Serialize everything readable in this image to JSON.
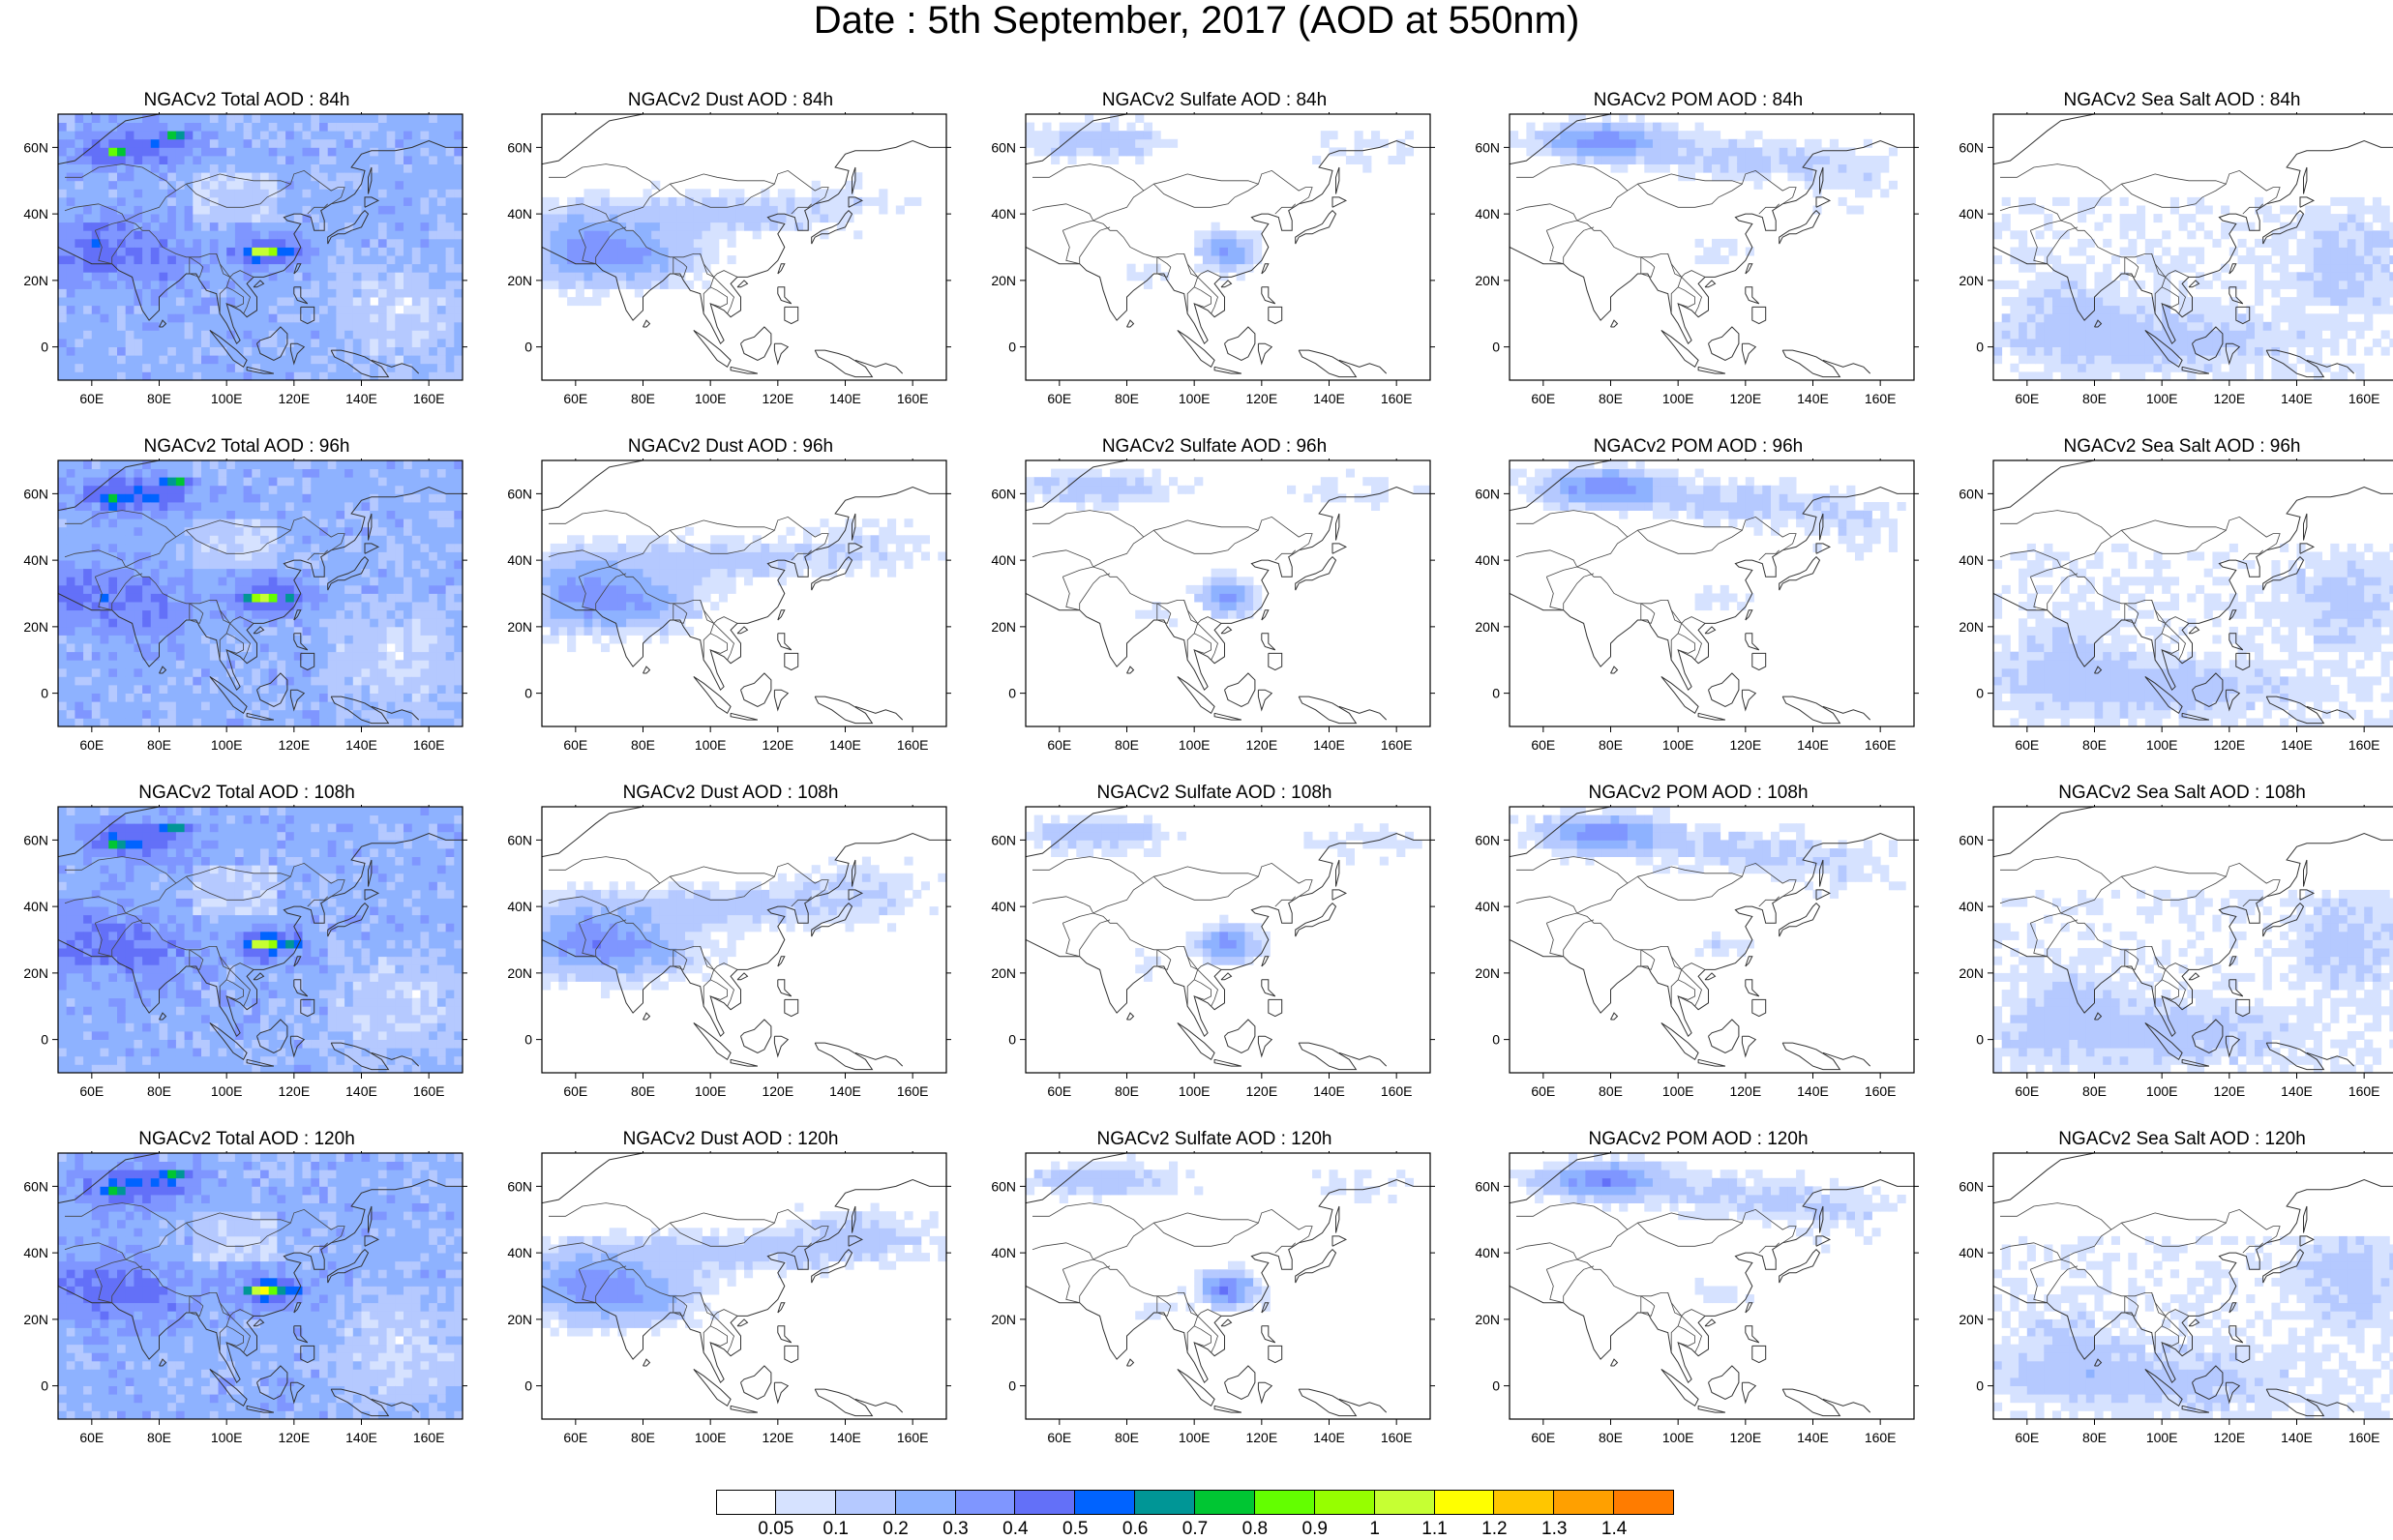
{
  "title": "Date : 5th September, 2017 (AOD at 550nm)",
  "latlon": {
    "lon_ticks": [
      "60E",
      "80E",
      "100E",
      "120E",
      "140E",
      "160E"
    ],
    "lat_ticks": [
      "60N",
      "40N",
      "20N",
      "0"
    ]
  },
  "colorbar": {
    "colors": [
      "#ffffff",
      "#d6e2ff",
      "#b5c9ff",
      "#8eb2ff",
      "#7f96ff",
      "#6370f8",
      "#0063ff",
      "#009696",
      "#00c633",
      "#63ff00",
      "#96ff00",
      "#c6ff33",
      "#ffff00",
      "#ffc600",
      "#ffa000",
      "#ff7c00",
      "#ff1900"
    ],
    "labels": [
      "0.05",
      "0.1",
      "0.2",
      "0.3",
      "0.4",
      "0.5",
      "0.6",
      "0.7",
      "0.8",
      "0.9",
      "1",
      "1.1",
      "1.2",
      "1.3",
      "1.4"
    ]
  },
  "panels": [
    {
      "title": "NGACv2 Total AOD : 84h",
      "species": "total",
      "hour": 84
    },
    {
      "title": "NGACv2 Dust AOD : 84h",
      "species": "dust",
      "hour": 84
    },
    {
      "title": "NGACv2 Sulfate AOD : 84h",
      "species": "sulfate",
      "hour": 84
    },
    {
      "title": "NGACv2 POM AOD : 84h",
      "species": "pom",
      "hour": 84
    },
    {
      "title": "NGACv2 Sea Salt AOD : 84h",
      "species": "seasalt",
      "hour": 84
    },
    {
      "title": "NGACv2 Total AOD : 96h",
      "species": "total",
      "hour": 96
    },
    {
      "title": "NGACv2 Dust AOD : 96h",
      "species": "dust",
      "hour": 96
    },
    {
      "title": "NGACv2 Sulfate AOD : 96h",
      "species": "sulfate",
      "hour": 96
    },
    {
      "title": "NGACv2 POM AOD : 96h",
      "species": "pom",
      "hour": 96
    },
    {
      "title": "NGACv2 Sea Salt AOD : 96h",
      "species": "seasalt",
      "hour": 96
    },
    {
      "title": "NGACv2 Total AOD : 108h",
      "species": "total",
      "hour": 108
    },
    {
      "title": "NGACv2 Dust AOD : 108h",
      "species": "dust",
      "hour": 108
    },
    {
      "title": "NGACv2 Sulfate AOD : 108h",
      "species": "sulfate",
      "hour": 108
    },
    {
      "title": "NGACv2 POM AOD : 108h",
      "species": "pom",
      "hour": 108
    },
    {
      "title": "NGACv2 Sea Salt AOD : 108h",
      "species": "seasalt",
      "hour": 108
    },
    {
      "title": "NGACv2 Total AOD : 120h",
      "species": "total",
      "hour": 120
    },
    {
      "title": "NGACv2 Dust AOD : 120h",
      "species": "dust",
      "hour": 120
    },
    {
      "title": "NGACv2 Sulfate AOD : 120h",
      "species": "sulfate",
      "hour": 120
    },
    {
      "title": "NGACv2 POM AOD : 120h",
      "species": "pom",
      "hour": 120
    },
    {
      "title": "NGACv2 Sea Salt  AOD : 120h",
      "species": "seasalt",
      "hour": 120
    }
  ]
}
